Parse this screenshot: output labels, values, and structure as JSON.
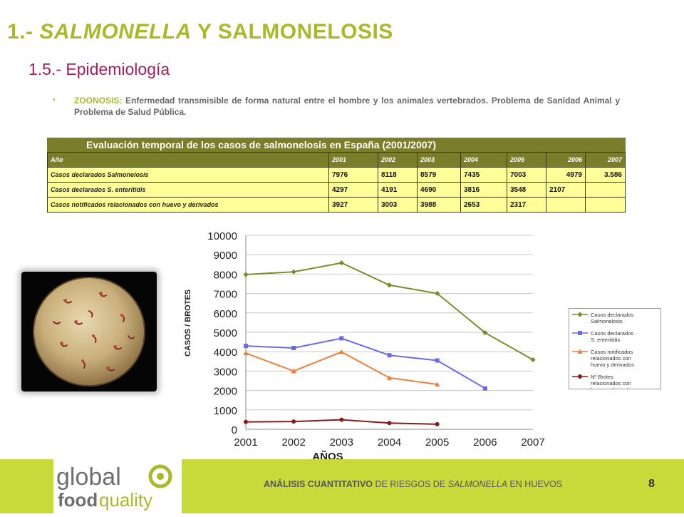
{
  "header": {
    "title_prefix": "1.- ",
    "title_italic": "SALMONELLA",
    "title_suffix": " Y SALMONELOSIS",
    "subtitle": "1.5.- Epidemiología"
  },
  "body": {
    "bullet": "•",
    "key": "ZOONOSIS:",
    "text": " Enfermedad transmisible de forma natural entre el hombre y los animales vertebrados. Problema de Sanidad Animal y Problema de Salud Pública."
  },
  "table": {
    "caption": "Evaluación temporal de los casos de salmonelosis en España (2001/2007)",
    "header": [
      "Año",
      "2001",
      "2002",
      "2003",
      "2004",
      "2005",
      "2006",
      "2007"
    ],
    "rows": [
      [
        "Casos declarados Salmonelosis",
        "7976",
        "8118",
        "8579",
        "7435",
        "7003",
        "4979",
        "3.586"
      ],
      [
        "Casos declarados S. enteritidis",
        "4297",
        "4191",
        "4690",
        "3816",
        "3548",
        "2107",
        ""
      ],
      [
        "Casos notificados relacionados con huevo y derivados",
        "3927",
        "3003",
        "3988",
        "2653",
        "2317",
        "",
        ""
      ]
    ]
  },
  "chart_data": {
    "type": "line",
    "ylabel": "CASOS / BROTES",
    "xlabel": "AÑOS",
    "x": [
      2001,
      2002,
      2003,
      2004,
      2005,
      2006,
      2007
    ],
    "ylim": [
      0,
      10000
    ],
    "yticks": [
      0,
      1000,
      2000,
      3000,
      4000,
      5000,
      6000,
      7000,
      8000,
      9000,
      10000
    ],
    "grid": true,
    "legend_position": "right",
    "series": [
      {
        "name": "Casos declarados Salmonelosis",
        "name_lines": [
          "Casos declarados",
          "Salmonelosis"
        ],
        "color": "#7d8a2a",
        "marker": "diamond",
        "values": [
          7976,
          8118,
          8579,
          7435,
          7003,
          4979,
          3586
        ]
      },
      {
        "name": "Casos declarados S. enteritidis",
        "name_lines": [
          "Casos declarados",
          "S. enteritidis"
        ],
        "color": "#6a6ae6",
        "marker": "square",
        "values": [
          4297,
          4191,
          4690,
          3816,
          3548,
          2107,
          null
        ]
      },
      {
        "name": "Casos notificados relacionados con huevo y derivados",
        "name_lines": [
          "Casos notificados",
          "relacionados con",
          "huevo y derivados"
        ],
        "color": "#f07d3a",
        "marker": "triangle",
        "values": [
          3927,
          3003,
          3988,
          2653,
          2317,
          null,
          null
        ]
      },
      {
        "name": "Nº Brotes relacionados con huevo y derivados",
        "name_lines": [
          "Nº Brotes",
          "relacionados con",
          "huevo y derivados"
        ],
        "color": "#8a1a1a",
        "marker": "circle",
        "values": [
          380,
          400,
          490,
          320,
          260,
          null,
          null
        ]
      }
    ]
  },
  "footer": {
    "logo_line1": "global",
    "logo_line2a": "food",
    "logo_line2b": "quality",
    "text_bold": "ANÁLISIS CUANTITATIVO",
    "text_mid": " DE RIESGOS DE ",
    "text_italic": "SALMONELLA",
    "text_end": " EN HUEVOS",
    "page": "8"
  },
  "colors": {
    "accent_green": "#a8ba2a",
    "subtitle_purple": "#a51c5a",
    "footer_bg": "#c8da3a",
    "table_header": "#7a7e2a",
    "table_cell": "#ffff9a"
  }
}
